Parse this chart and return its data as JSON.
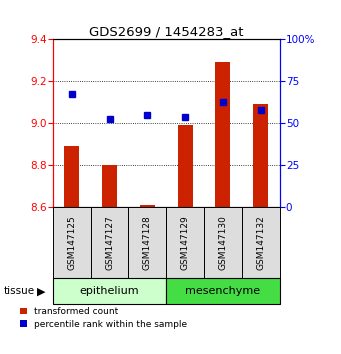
{
  "title": "GDS2699 / 1454283_at",
  "samples": [
    "GSM147125",
    "GSM147127",
    "GSM147128",
    "GSM147129",
    "GSM147130",
    "GSM147132"
  ],
  "red_values": [
    8.89,
    8.8,
    8.61,
    8.99,
    9.29,
    9.09
  ],
  "blue_values_left": [
    9.14,
    9.02,
    9.04,
    9.03,
    9.1,
    9.06
  ],
  "ylim_left": [
    8.6,
    9.4
  ],
  "ylim_right": [
    0,
    100
  ],
  "yticks_left": [
    8.6,
    8.8,
    9.0,
    9.2,
    9.4
  ],
  "yticks_right": [
    0,
    25,
    50,
    75,
    100
  ],
  "ytick_labels_right": [
    "0",
    "25",
    "50",
    "75",
    "100%"
  ],
  "bar_color": "#CC2200",
  "dot_color": "#0000CC",
  "tissue_labels": [
    "epithelium",
    "mesenchyme"
  ],
  "epi_color": "#CCFFCC",
  "meso_color": "#44DD44",
  "legend_red": "transformed count",
  "legend_blue": "percentile rank within the sample",
  "tissue_label": "tissue",
  "bar_bottom": 8.6,
  "bar_width": 0.4,
  "dot_size": 4.5
}
